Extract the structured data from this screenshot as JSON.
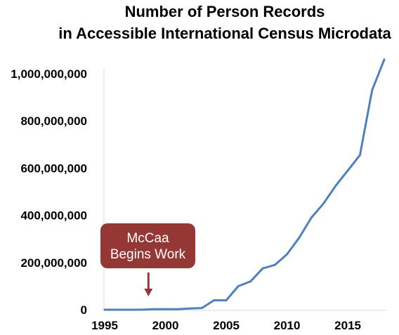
{
  "chart_data": {
    "type": "line",
    "title": [
      "Number of Person Records",
      "in Accessible International Census Microdata"
    ],
    "xlabel": "",
    "ylabel": "",
    "x": [
      1995,
      1996,
      1997,
      1998,
      1999,
      2000,
      2001,
      2002,
      2003,
      2004,
      2005,
      2006,
      2007,
      2008,
      2009,
      2010,
      2011,
      2012,
      2013,
      2014,
      2015,
      2016,
      2017,
      2018
    ],
    "values": [
      0,
      0,
      0,
      0,
      2000000,
      2000000,
      2000000,
      5000000,
      7000000,
      40000000,
      40000000,
      100000000,
      120000000,
      175000000,
      190000000,
      235000000,
      305000000,
      390000000,
      450000000,
      525000000,
      590000000,
      655000000,
      930000000,
      1060000000
    ],
    "xlim": [
      1995,
      2018
    ],
    "ylim": [
      0,
      1000000000
    ],
    "xticks": [
      "1995",
      "2000",
      "2005",
      "2010",
      "2015"
    ],
    "xtick_values": [
      1995,
      2000,
      2005,
      2010,
      2015
    ],
    "yticks": [
      "0",
      "200,000,000",
      "400,000,000",
      "600,000,000",
      "800,000,000",
      "1,000,000,000"
    ],
    "ytick_values": [
      0,
      200000000,
      400000000,
      600000000,
      800000000,
      1000000000
    ],
    "grid": false,
    "line_color": "#4f81bd",
    "annotation": {
      "lines": [
        "McCaa",
        "Begins Work"
      ],
      "x": 1998.6,
      "color": "#953735"
    }
  }
}
